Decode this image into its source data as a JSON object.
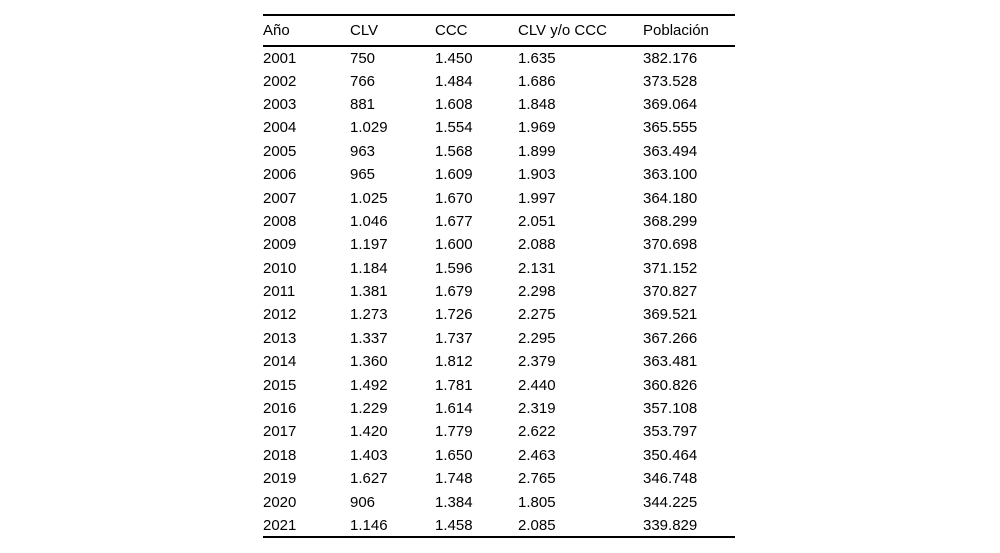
{
  "chart_data": {
    "type": "table",
    "title": "",
    "columns": [
      "Año",
      "CLV",
      "CCC",
      "CLV y/o CCC",
      "Población"
    ],
    "rows": [
      [
        "2001",
        "750",
        "1.450",
        "1.635",
        "382.176"
      ],
      [
        "2002",
        "766",
        "1.484",
        "1.686",
        "373.528"
      ],
      [
        "2003",
        "881",
        "1.608",
        "1.848",
        "369.064"
      ],
      [
        "2004",
        "1.029",
        "1.554",
        "1.969",
        "365.555"
      ],
      [
        "2005",
        "963",
        "1.568",
        "1.899",
        "363.494"
      ],
      [
        "2006",
        "965",
        "1.609",
        "1.903",
        "363.100"
      ],
      [
        "2007",
        "1.025",
        "1.670",
        "1.997",
        "364.180"
      ],
      [
        "2008",
        "1.046",
        "1.677",
        "2.051",
        "368.299"
      ],
      [
        "2009",
        "1.197",
        "1.600",
        "2.088",
        "370.698"
      ],
      [
        "2010",
        "1.184",
        "1.596",
        "2.131",
        "371.152"
      ],
      [
        "2011",
        "1.381",
        "1.679",
        "2.298",
        "370.827"
      ],
      [
        "2012",
        "1.273",
        "1.726",
        "2.275",
        "369.521"
      ],
      [
        "2013",
        "1.337",
        "1.737",
        "2.295",
        "367.266"
      ],
      [
        "2014",
        "1.360",
        "1.812",
        "2.379",
        "363.481"
      ],
      [
        "2015",
        "1.492",
        "1.781",
        "2.440",
        "360.826"
      ],
      [
        "2016",
        "1.229",
        "1.614",
        "2.319",
        "357.108"
      ],
      [
        "2017",
        "1.420",
        "1.779",
        "2.622",
        "353.797"
      ],
      [
        "2018",
        "1.403",
        "1.650",
        "2.463",
        "350.464"
      ],
      [
        "2019",
        "1.627",
        "1.748",
        "2.765",
        "346.748"
      ],
      [
        "2020",
        "906",
        "1.384",
        "1.805",
        "344.225"
      ],
      [
        "2021",
        "1.146",
        "1.458",
        "2.085",
        "339.829"
      ]
    ]
  },
  "style": {
    "background_color": "#ffffff",
    "text_color": "#000000",
    "rule_color": "#000000"
  }
}
